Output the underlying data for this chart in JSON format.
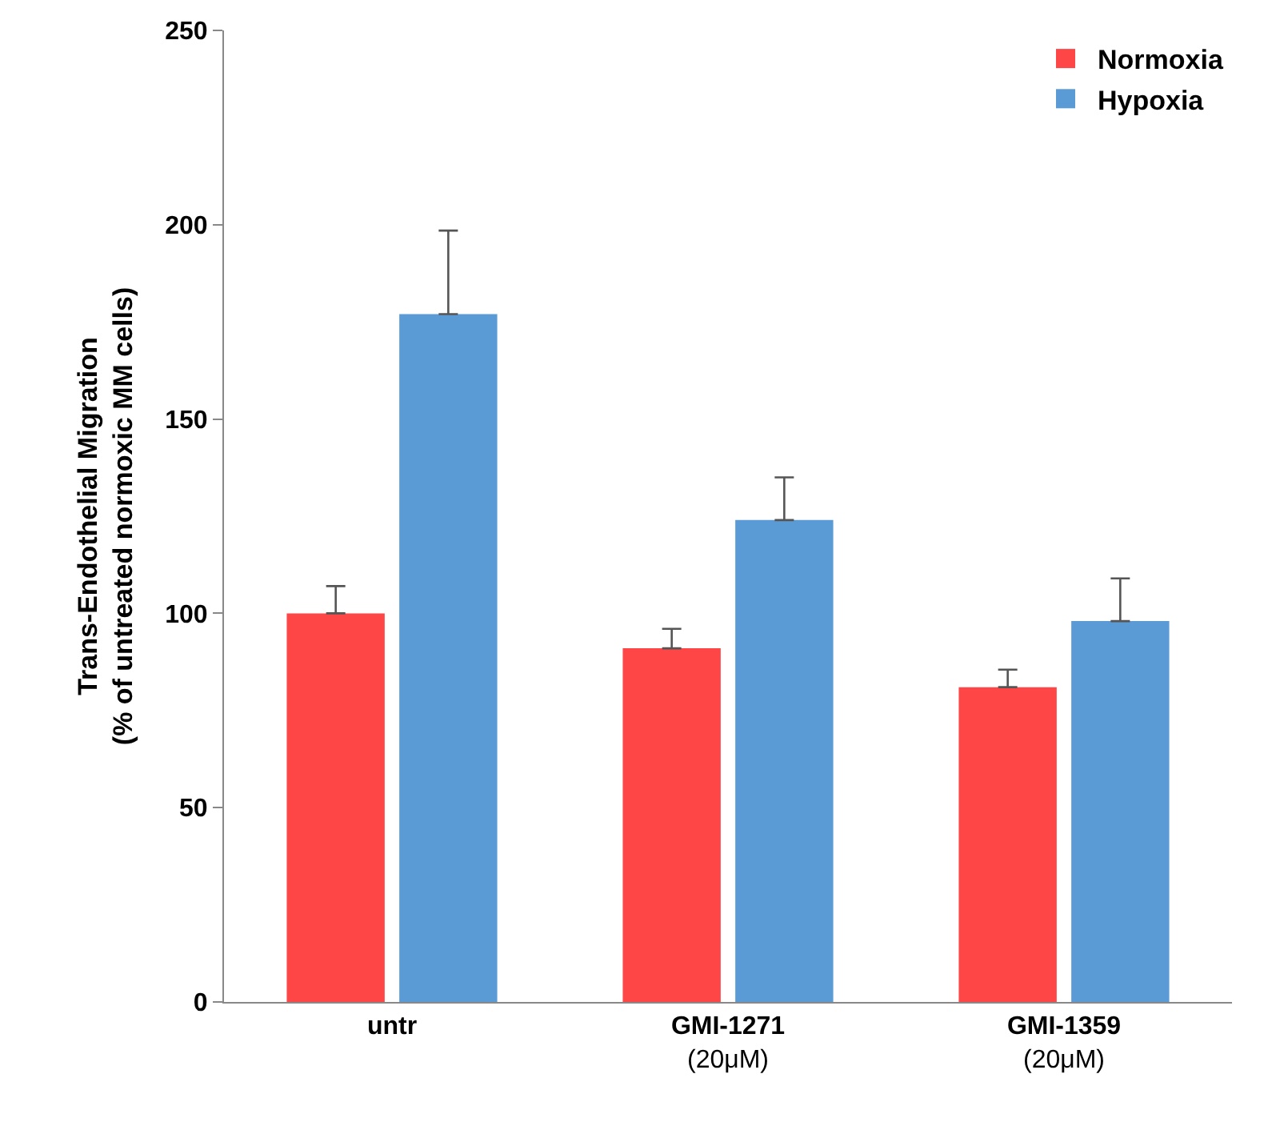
{
  "chart_data": {
    "type": "bar",
    "ylabel": "Trans-Endothelial Migration\n(% of untreated normoxic MM cells)",
    "categories": [
      "untr",
      "GMI-1271\n(20μM)",
      "GMI-1359\n(20μM)"
    ],
    "series": [
      {
        "name": "Normoxia",
        "color": "#ff4646",
        "values": [
          100,
          91,
          81
        ],
        "errors": [
          [
            100,
            107
          ],
          [
            91,
            96
          ],
          [
            81,
            85.5
          ]
        ]
      },
      {
        "name": "Hypoxia",
        "color": "#5b9bd5",
        "values": [
          177,
          124,
          98
        ],
        "errors": [
          [
            177,
            198.5
          ],
          [
            124,
            135
          ],
          [
            98,
            109
          ]
        ]
      }
    ],
    "ylim": [
      0,
      250
    ],
    "yticks": [
      0,
      50,
      100,
      150,
      200,
      250
    ],
    "legend": "top right"
  }
}
